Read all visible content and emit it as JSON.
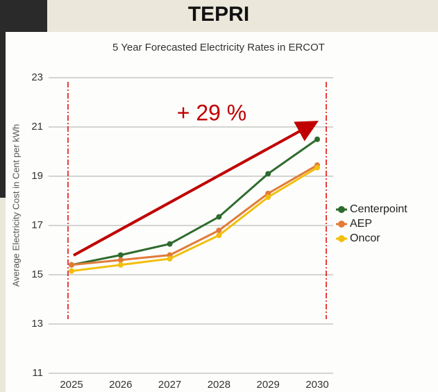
{
  "header": {
    "title": "TEPRI"
  },
  "chart_data": {
    "type": "line",
    "title": "5 Year Forecasted Electricity Rates in ERCOT",
    "y_label": "Average Electricity Cost in Cent per kWh",
    "annotation": "+ 29 %",
    "categories": [
      "2025",
      "2026",
      "2027",
      "2028",
      "2029",
      "2030"
    ],
    "series": [
      {
        "name": "Centerpoint",
        "color": "#2e6b2e",
        "values": [
          15.4,
          15.8,
          16.25,
          17.35,
          19.1,
          20.5
        ]
      },
      {
        "name": "AEP",
        "color": "#e07b39",
        "values": [
          15.4,
          15.6,
          15.8,
          16.8,
          18.3,
          19.45
        ]
      },
      {
        "name": "Oncor",
        "color": "#f2bf10",
        "values": [
          15.15,
          15.4,
          15.65,
          16.6,
          18.15,
          19.35
        ]
      }
    ],
    "ylim": [
      11,
      23
    ],
    "yticks": [
      11,
      13,
      15,
      17,
      19,
      21,
      23
    ],
    "grid": true,
    "legend": "right"
  }
}
